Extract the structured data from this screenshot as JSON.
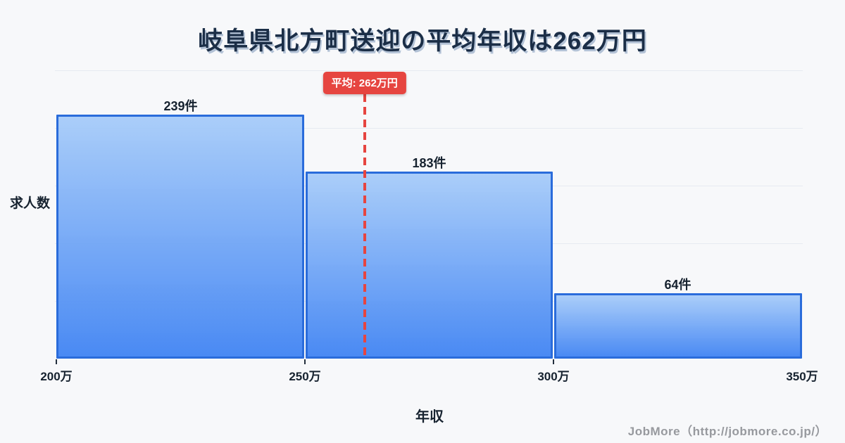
{
  "title": "岐阜県北方町送迎の平均年収は262万円",
  "axes": {
    "y_label": "求人数",
    "x_label": "年収"
  },
  "average_badge": {
    "label": "平均: 262万円"
  },
  "footer": {
    "credit": "JobMore（http://jobmore.co.jp/）"
  },
  "colors": {
    "background": "#f7f8fa",
    "title_text": "#1b2e47",
    "title_shadow": "#b3c2d6",
    "bar_fill_top": "#a6cbf9",
    "bar_fill_bottom": "#4486f3",
    "bar_border": "#2a6cdb",
    "gridline": "#e7eaf1",
    "average_red": "#e64540",
    "axis_text": "#16222f",
    "footer_text": "#97999e"
  },
  "chart_data": {
    "type": "bar",
    "subtype": "histogram",
    "title": "岐阜県北方町送迎の平均年収は262万円",
    "xlabel": "年収",
    "ylabel": "求人数",
    "x_tick_labels": [
      "200万",
      "250万",
      "300万",
      "350万"
    ],
    "x_tick_values_man_yen": [
      200,
      250,
      300,
      350
    ],
    "tick_marks_man_yen": [
      200,
      250,
      300
    ],
    "x_range_man_yen": [
      200,
      350
    ],
    "bins": [
      {
        "from_man_yen": 200,
        "to_man_yen": 250,
        "count": 239,
        "label": "239件"
      },
      {
        "from_man_yen": 250,
        "to_man_yen": 300,
        "count": 183,
        "label": "183件"
      },
      {
        "from_man_yen": 300,
        "to_man_yen": 350,
        "count": 64,
        "label": "64件"
      }
    ],
    "average_man_yen": 262,
    "average_annotation": "平均: 262万円",
    "ylim": [
      0,
      282
    ],
    "y_tick_labels": [],
    "grid": "horizontal",
    "legend": "none"
  }
}
